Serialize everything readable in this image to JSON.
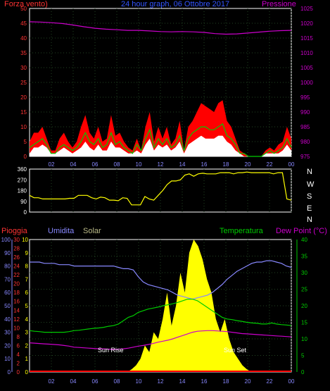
{
  "header": {
    "wind_label": "Forza vento)",
    "title": "24 hour graph, 06 Ottobre 2017",
    "pressure_label": "Pressione"
  },
  "compass": [
    "N",
    "W",
    "S",
    "E",
    "N"
  ],
  "legend": {
    "rain": "Pioggia",
    "humidity": "Umidita",
    "solar": "Solar",
    "temperature": "Temperatura",
    "dewpoint": "Dew Point (°C)"
  },
  "colors": {
    "wind_gust": "#ff0000",
    "wind_speed": "#00cc00",
    "wind_avg": "#ffffff",
    "pressure": "#cc00cc",
    "wind_dir": "#ffff00",
    "humidity": "#8888ff",
    "temperature": "#00cc00",
    "dewpoint": "#cc00cc",
    "solar": "#ffff00",
    "rain": "#ff0000",
    "grid": "#224422"
  },
  "chart_data": [
    {
      "type": "area",
      "name": "wind-pressure",
      "x_ticks": [
        "02",
        "04",
        "06",
        "08",
        "10",
        "12",
        "14",
        "16",
        "18",
        "20",
        "22",
        "00"
      ],
      "y_left_ticks": [
        0,
        5,
        10,
        15,
        20,
        25,
        30,
        35,
        40,
        45,
        50
      ],
      "y_right_ticks": [
        975,
        980,
        985,
        990,
        995,
        1000,
        1005,
        1010,
        1015,
        1020,
        1025
      ],
      "ylim_left": [
        0,
        50
      ],
      "ylim_right": [
        975,
        1025
      ],
      "series": [
        {
          "key": "pressure",
          "axis": "right",
          "values": [
            1020.5,
            1020.4,
            1020.2,
            1019.9,
            1019.4,
            1018.8,
            1018.3,
            1018.0,
            1017.8,
            1017.6,
            1017.6,
            1017.4,
            1017.2,
            1017.1,
            1017.2,
            1017.1,
            1016.9,
            1016.5,
            1016.3,
            1016.4,
            1016.7,
            1017.0,
            1017.3,
            1017.5,
            1017.6
          ]
        },
        {
          "key": "gust",
          "axis": "left",
          "values": [
            5,
            8,
            8,
            10,
            6,
            2,
            2,
            6,
            8,
            5,
            3,
            5,
            10,
            14,
            8,
            6,
            10,
            5,
            6,
            14,
            7,
            8,
            5,
            3,
            2,
            6,
            2,
            10,
            15,
            5,
            10,
            6,
            10,
            4,
            6,
            12,
            2,
            10,
            12,
            15,
            18,
            17,
            16,
            15,
            18,
            19,
            12,
            10,
            6,
            2,
            1,
            0,
            0,
            0,
            0,
            2,
            3,
            2,
            4,
            5,
            10,
            6
          ]
        },
        {
          "key": "speed",
          "axis": "left",
          "values": [
            3,
            4,
            5,
            6,
            4,
            1,
            1,
            3,
            4,
            3,
            2,
            3,
            5,
            8,
            5,
            4,
            6,
            3,
            4,
            8,
            4,
            5,
            3,
            2,
            1,
            4,
            2,
            6,
            9,
            3,
            6,
            4,
            6,
            3,
            4,
            7,
            2,
            6,
            8,
            9,
            10,
            10,
            9,
            9,
            10,
            11,
            7,
            6,
            4,
            1,
            1,
            0,
            0,
            0,
            0,
            1,
            2,
            1,
            2,
            3,
            6,
            3
          ]
        },
        {
          "key": "avg",
          "axis": "left",
          "values": [
            1,
            3,
            3,
            4,
            3,
            1,
            1,
            2,
            3,
            2,
            1,
            2,
            3,
            5,
            3,
            2,
            4,
            2,
            2,
            5,
            3,
            3,
            2,
            1,
            1,
            2,
            1,
            4,
            6,
            2,
            4,
            3,
            4,
            2,
            3,
            5,
            1,
            4,
            5,
            6,
            7,
            6,
            6,
            6,
            7,
            7,
            5,
            4,
            2,
            1,
            0,
            0,
            0,
            0,
            0,
            1,
            1,
            1,
            1,
            2,
            4,
            2
          ]
        }
      ]
    },
    {
      "type": "line",
      "name": "wind-direction",
      "y_ticks": [
        0,
        90,
        180,
        270,
        360
      ],
      "ylim": [
        0,
        360
      ],
      "series": [
        {
          "key": "dir",
          "values": [
            140,
            120,
            120,
            110,
            110,
            110,
            110,
            110,
            110,
            115,
            115,
            140,
            140,
            140,
            120,
            110,
            125,
            120,
            100,
            100,
            95,
            120,
            115,
            60,
            60,
            60,
            130,
            110,
            100,
            140,
            180,
            230,
            260,
            260,
            270,
            310,
            320,
            300,
            320,
            325,
            320,
            320,
            320,
            330,
            330,
            330,
            320,
            330,
            330,
            335,
            330,
            330,
            330,
            330,
            330,
            320,
            330,
            330,
            110,
            100
          ]
        }
      ]
    },
    {
      "type": "line",
      "name": "temperature-humidity-solar-rain",
      "x_ticks": [
        "02",
        "04",
        "06",
        "08",
        "10",
        "12",
        "14",
        "16",
        "18",
        "20",
        "22",
        "00"
      ],
      "y_humidity_ticks": [
        0,
        10,
        20,
        30,
        40,
        50,
        60,
        70,
        80,
        90,
        100
      ],
      "y_rain_ticks": [
        0,
        2,
        4,
        6,
        8,
        10,
        12,
        14,
        16,
        18,
        20,
        22,
        24,
        26,
        28,
        30
      ],
      "y_solar_ticks": [
        0,
        1,
        2,
        3,
        4,
        5,
        6,
        7,
        8,
        9,
        10
      ],
      "y_temp_ticks": [
        0,
        5,
        10,
        15,
        20,
        25,
        30,
        35,
        40
      ],
      "ylim_temp": [
        0,
        40
      ],
      "ylim_humidity": [
        0,
        100
      ],
      "annotations": [
        "Sun Rise",
        "Sun Set"
      ],
      "series": [
        {
          "key": "humidity",
          "axis": "humidity",
          "values": [
            83,
            83,
            83,
            82,
            82,
            82,
            81,
            81,
            81,
            80,
            80,
            80,
            80,
            80,
            80,
            80,
            80,
            80,
            79,
            78,
            78,
            77,
            72,
            68,
            66,
            65,
            64,
            63,
            62,
            60,
            58,
            57,
            56,
            55,
            56,
            57,
            58,
            60,
            63,
            66,
            70,
            73,
            76,
            78,
            80,
            82,
            83,
            83,
            84,
            84,
            83,
            82,
            80,
            79
          ]
        },
        {
          "key": "temperature",
          "axis": "temp",
          "values": [
            12.5,
            12.3,
            12.2,
            12.0,
            12.0,
            12.0,
            12.0,
            12.0,
            12.2,
            12.5,
            12.6,
            12.8,
            13.0,
            13.2,
            13.3,
            13.5,
            13.8,
            14.0,
            14.5,
            15.5,
            16.5,
            17.0,
            18.0,
            18.5,
            19.0,
            19.3,
            19.6,
            20.0,
            20.3,
            20.6,
            21.0,
            21.5,
            22.0,
            22.0,
            21.5,
            20.5,
            19.5,
            18.5,
            17.5,
            16.5,
            16.0,
            15.8,
            15.5,
            15.3,
            15.0,
            14.8,
            14.7,
            14.5,
            14.5,
            14.8,
            14.5,
            14.3,
            14.2,
            14.0
          ]
        },
        {
          "key": "dewpoint",
          "axis": "temp",
          "values": [
            8.8,
            8.7,
            8.6,
            8.5,
            8.4,
            8.3,
            8.2,
            8.0,
            7.8,
            7.5,
            7.4,
            7.3,
            7.2,
            7.1,
            7.0,
            7.0,
            6.9,
            6.8,
            6.9,
            7.0,
            7.2,
            7.5,
            7.8,
            8.0,
            8.3,
            8.6,
            9.0,
            9.3,
            9.6,
            10.0,
            10.5,
            11.0,
            11.5,
            12.0,
            12.3,
            12.4,
            12.5,
            12.5,
            12.4,
            12.3,
            12.2,
            12.0,
            11.8,
            11.6,
            11.5,
            11.4,
            11.3,
            11.2,
            11.1,
            11.0,
            10.9,
            10.8,
            10.7,
            10.6
          ]
        },
        {
          "key": "solar",
          "axis": "solar",
          "values": [
            0,
            0,
            0,
            0,
            0,
            0,
            0,
            0,
            0,
            0,
            0,
            0,
            0,
            0,
            0,
            0,
            0,
            0,
            0,
            0,
            0,
            0,
            0,
            0.2,
            0.5,
            1.0,
            2.0,
            1.5,
            3.0,
            2.5,
            4.0,
            6.0,
            3.5,
            5.0,
            7.5,
            6.0,
            9.0,
            10.0,
            9.5,
            8.5,
            7.0,
            6.0,
            4.0,
            3.0,
            4.0,
            2.5,
            1.5,
            1.0,
            0.5,
            0.2,
            0,
            0,
            0,
            0,
            0,
            0,
            0,
            0,
            0,
            0
          ]
        }
      ]
    }
  ]
}
